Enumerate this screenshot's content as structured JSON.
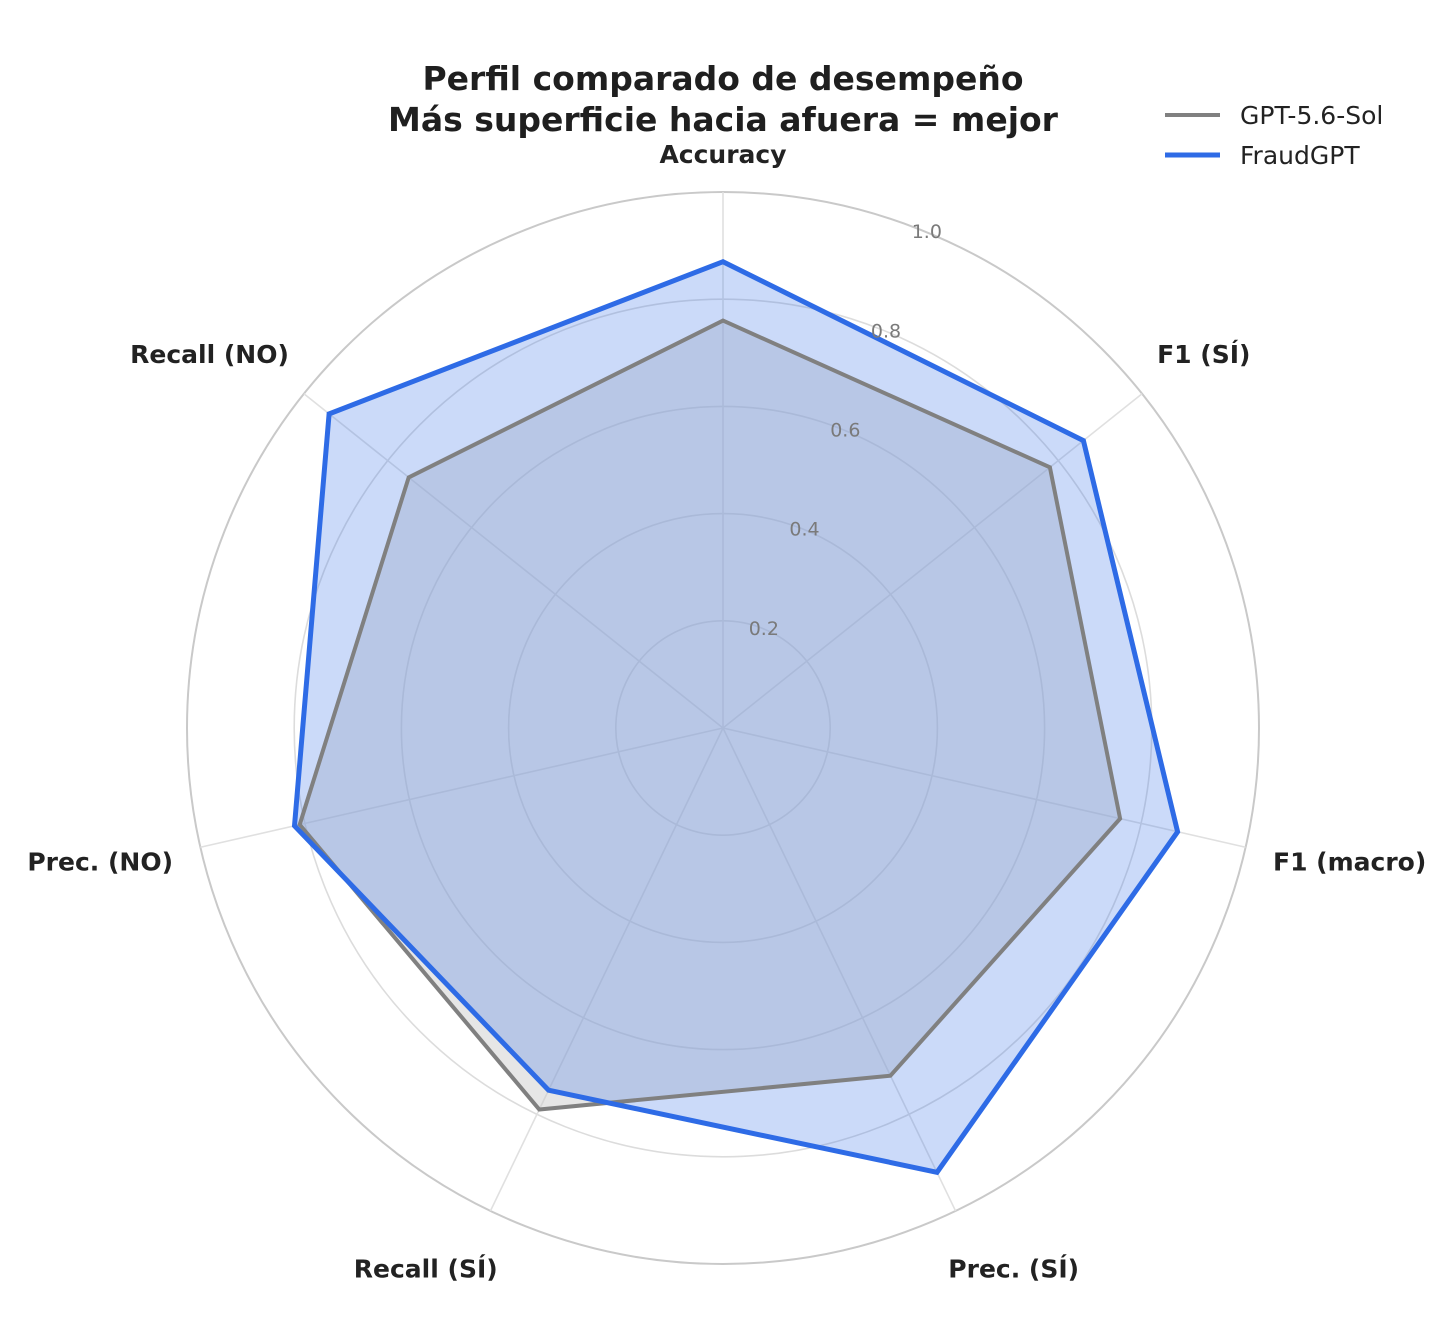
{
  "chart_data": {
    "type": "radar",
    "title": [
      "Perfil comparado de desempeño",
      "Más superficie hacia afuera = mejor"
    ],
    "axes": [
      "Accuracy",
      "F1 (SÍ)",
      "F1 (macro)",
      "Prec. (SÍ)",
      "Recall (SÍ)",
      "Prec. (NO)",
      "Recall (NO)"
    ],
    "r_ticks": [
      "0.2",
      "0.4",
      "0.6",
      "0.8",
      "1.0"
    ],
    "r_tick_values": [
      0.2,
      0.4,
      0.6,
      0.8,
      1.0
    ],
    "rlim": [
      0,
      1.0
    ],
    "grid": true,
    "legend_position": "top-right",
    "series": [
      {
        "name": "GPT-5.6-Sol",
        "color": "#808080",
        "fill": "#c8c8c8",
        "values": [
          0.76,
          0.78,
          0.76,
          0.72,
          0.79,
          0.81,
          0.75
        ]
      },
      {
        "name": "FraudGPT",
        "color": "#2e6be6",
        "fill": "#2e6be6",
        "values": [
          0.87,
          0.86,
          0.87,
          0.92,
          0.75,
          0.82,
          0.94
        ]
      }
    ]
  }
}
